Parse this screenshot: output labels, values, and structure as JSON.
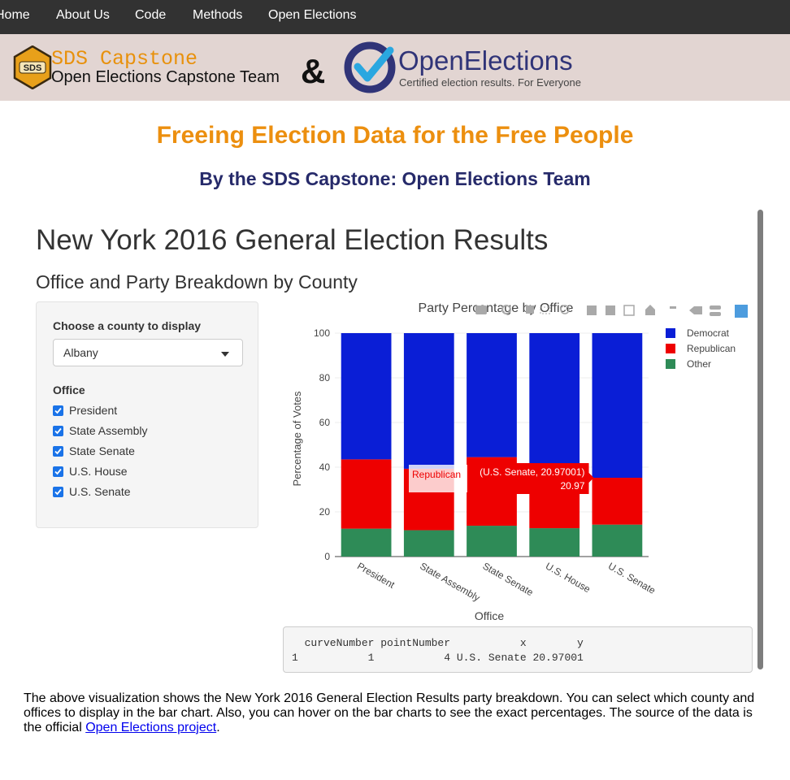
{
  "nav": {
    "items": [
      {
        "label": "Home",
        "name": "nav-home"
      },
      {
        "label": "About Us",
        "name": "nav-about-us"
      },
      {
        "label": "Code",
        "name": "nav-code"
      },
      {
        "label": "Methods",
        "name": "nav-methods"
      },
      {
        "label": "Open Elections",
        "name": "nav-open-elections"
      }
    ]
  },
  "banner": {
    "hex_badge_text": "SDS",
    "brand_title": "SDS Capstone",
    "brand_subtitle": "Open Elections Capstone Team",
    "ampersand": "&",
    "oe_name": "OpenElections",
    "oe_tagline": "Certified election results. For Everyone"
  },
  "headline": "Freeing Election Data for the Free People",
  "subheadline": "By the SDS Capstone: Open Elections Team",
  "app": {
    "title": "New York 2016 General Election Results",
    "subtitle": "Office and Party Breakdown by County",
    "county_label": "Choose a county to display",
    "county_value": "Albany",
    "office_label": "Office",
    "offices": [
      "President",
      "State Assembly",
      "State Senate",
      "U.S. House",
      "U.S. Senate"
    ]
  },
  "chart_data": {
    "type": "bar",
    "stacked": true,
    "title": "Party Percentage by Office",
    "xlabel": "Office",
    "ylabel": "Percentage of Votes",
    "ylim": [
      0,
      100
    ],
    "yticks": [
      0,
      20,
      40,
      60,
      80,
      100
    ],
    "categories": [
      "President",
      "State Assembly",
      "State Senate",
      "U.S. House",
      "U.S. Senate"
    ],
    "series": [
      {
        "name": "Other",
        "color": "#2e8b57",
        "values": [
          12.5,
          11.8,
          13.8,
          12.7,
          14.3
        ]
      },
      {
        "name": "Republican",
        "color": "#ee0000",
        "values": [
          31.0,
          27.5,
          30.7,
          27.8,
          20.97001
        ]
      },
      {
        "name": "Democrat",
        "color": "#0a1ed6",
        "values": [
          56.5,
          60.7,
          55.5,
          59.5,
          64.73
        ]
      }
    ],
    "legend_order": [
      "Democrat",
      "Republican",
      "Other"
    ],
    "hover": {
      "category": "U.S. Senate",
      "series": "Republican",
      "label": "Republican",
      "text": "(U.S. Senate, 20.97001)",
      "value": "20.97"
    }
  },
  "output": {
    "header": "  curveNumber pointNumber           x        y",
    "row": "1           1           4 U.S. Senate 20.97001"
  },
  "footer": {
    "text": "The above visualization shows the New York 2016 General Election Results party breakdown. You can select which county and offices to display in the bar chart. Also, you can hover on the bar charts to see the exact percentages. The source of the data is the official ",
    "link_text": "Open Elections project",
    "end": "."
  }
}
